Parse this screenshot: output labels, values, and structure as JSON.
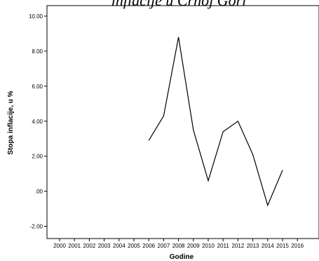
{
  "chart_data": {
    "type": "line",
    "title": "inflacije u Crnoj Gori",
    "xlabel": "Godine",
    "ylabel": "Stopa inflacije, u %",
    "x_categories": [
      "2000",
      "2001",
      "2002",
      "2003",
      "2004",
      "2005",
      "2006",
      "2007",
      "2008",
      "2009",
      "2010",
      "2011",
      "2012",
      "2013",
      "2014",
      "2015",
      "2016"
    ],
    "y_ticks": [
      -2,
      0,
      2,
      4,
      6,
      8,
      10
    ],
    "y_tick_labels": [
      "-2.00",
      ".00",
      "2.00",
      "4.00",
      "6.00",
      "8.00",
      "10.00"
    ],
    "ylim": [
      -2.7,
      10.6
    ],
    "grid": false,
    "series": [
      {
        "color": "#000000",
        "x": [
          "2006",
          "2007",
          "2008",
          "2009",
          "2010",
          "2011",
          "2012",
          "2013",
          "2014",
          "2015"
        ],
        "values": [
          2.9,
          4.3,
          8.8,
          3.5,
          0.6,
          3.4,
          4.0,
          2.1,
          -0.8,
          1.2
        ]
      }
    ]
  }
}
